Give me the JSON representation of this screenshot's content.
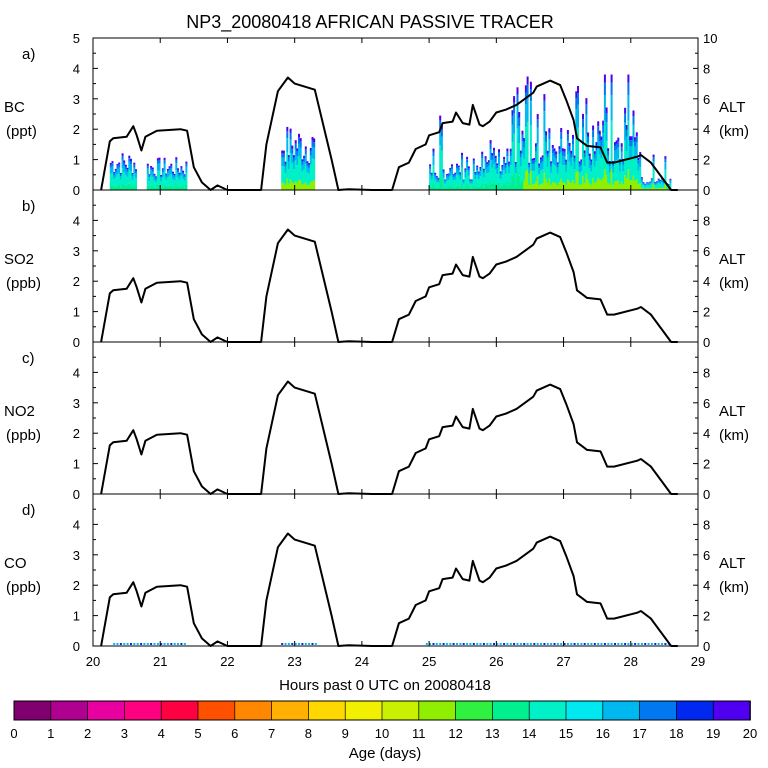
{
  "chart_data": {
    "type": "bar",
    "title": "NP3_20080418 AFRICAN PASSIVE TRACER",
    "xlabel": "Hours past 0 UTC on 20080418",
    "xlim": [
      20,
      29
    ],
    "x_ticks": [
      "20",
      "21",
      "22",
      "23",
      "24",
      "25",
      "26",
      "27",
      "28",
      "29"
    ],
    "right_axis": {
      "label": "ALT",
      "unit": "(km)",
      "ylim": [
        0,
        10
      ],
      "ticks": [
        "0",
        "2",
        "4",
        "6",
        "8"
      ],
      "top_tick_first_panel": "10"
    },
    "panels": [
      {
        "tag": "a)",
        "species": "BC",
        "unit": "(ppt)",
        "ylim": [
          0,
          5
        ],
        "ticks": [
          "0",
          "1",
          "2",
          "3",
          "4",
          "5"
        ],
        "tracer_segments": [
          {
            "x0": 20.25,
            "x1": 20.65,
            "base": 0.9
          },
          {
            "x0": 20.8,
            "x1": 21.4,
            "base": 0.75
          },
          {
            "x0": 22.8,
            "x1": 23.3,
            "base": 1.5
          },
          {
            "x0": 25.0,
            "x1": 25.7,
            "base": 0.6
          },
          {
            "x0": 25.7,
            "x1": 26.4,
            "base": 1.0
          },
          {
            "x0": 26.4,
            "x1": 27.5,
            "base": 1.5
          },
          {
            "x0": 27.5,
            "x1": 28.15,
            "base": 1.6
          },
          {
            "x0": 28.15,
            "x1": 28.6,
            "base": 0.3
          }
        ]
      },
      {
        "tag": "b)",
        "species": "SO2",
        "unit": "(ppb)",
        "ylim": [
          0,
          5
        ],
        "ticks": [
          "0",
          "1",
          "2",
          "3",
          "4"
        ]
      },
      {
        "tag": "c)",
        "species": "NO2",
        "unit": "(ppb)",
        "ylim": [
          0,
          5
        ],
        "ticks": [
          "0",
          "1",
          "2",
          "3",
          "4"
        ]
      },
      {
        "tag": "d)",
        "species": "CO",
        "unit": "(ppb)",
        "ylim": [
          0,
          5
        ],
        "ticks": [
          "0",
          "1",
          "2",
          "3",
          "4"
        ],
        "trace_level": 0.05
      }
    ],
    "altitude_km": {
      "x": [
        20.12,
        20.25,
        20.3,
        20.5,
        20.6,
        20.65,
        20.72,
        20.78,
        20.95,
        21.3,
        21.4,
        21.5,
        21.62,
        21.75,
        21.85,
        22.0,
        22.5,
        22.58,
        22.75,
        22.9,
        23.0,
        23.3,
        23.55,
        23.65,
        23.8,
        24.15,
        24.2,
        24.45,
        24.55,
        24.7,
        24.8,
        24.95,
        25.0,
        25.15,
        25.2,
        25.35,
        25.4,
        25.5,
        25.6,
        25.65,
        25.75,
        25.8,
        25.9,
        26.0,
        26.15,
        26.3,
        26.55,
        26.6,
        26.75,
        26.8,
        26.95,
        27.05,
        27.15,
        27.2,
        27.35,
        27.55,
        27.65,
        27.75,
        28.1,
        28.15,
        28.3,
        28.5,
        28.6,
        28.7
      ],
      "y": [
        0,
        3.2,
        3.4,
        3.5,
        4.2,
        3.6,
        2.6,
        3.5,
        3.9,
        4.0,
        3.9,
        1.5,
        0.5,
        0,
        0.3,
        0,
        0,
        3.0,
        6.5,
        7.4,
        7.0,
        6.6,
        2.0,
        0,
        0.05,
        0,
        0,
        0,
        1.5,
        1.8,
        2.7,
        3.0,
        3.6,
        3.8,
        4.4,
        4.5,
        5.1,
        4.4,
        4.3,
        5.6,
        4.3,
        4.2,
        4.5,
        5.1,
        5.3,
        5.6,
        6.4,
        6.8,
        7.1,
        7.2,
        6.9,
        5.8,
        4.6,
        3.4,
        2.9,
        2.8,
        1.8,
        1.8,
        2.2,
        2.3,
        1.8,
        0.6,
        0,
        0
      ]
    }
  },
  "colorbar": {
    "label": "Age (days)",
    "labels": [
      "0",
      "1",
      "2",
      "3",
      "4",
      "5",
      "6",
      "7",
      "8",
      "9",
      "10",
      "11",
      "12",
      "13",
      "14",
      "15",
      "16",
      "17",
      "18",
      "19",
      "20"
    ],
    "colors": [
      "#800070",
      "#b00090",
      "#e800a0",
      "#ff0080",
      "#ff0040",
      "#ff5000",
      "#ff8800",
      "#ffb000",
      "#ffd800",
      "#f0f000",
      "#c8f000",
      "#90ee00",
      "#30f040",
      "#00f090",
      "#00f0c8",
      "#00e8f0",
      "#00b8f0",
      "#0078f0",
      "#0028f0",
      "#5000f0"
    ]
  }
}
